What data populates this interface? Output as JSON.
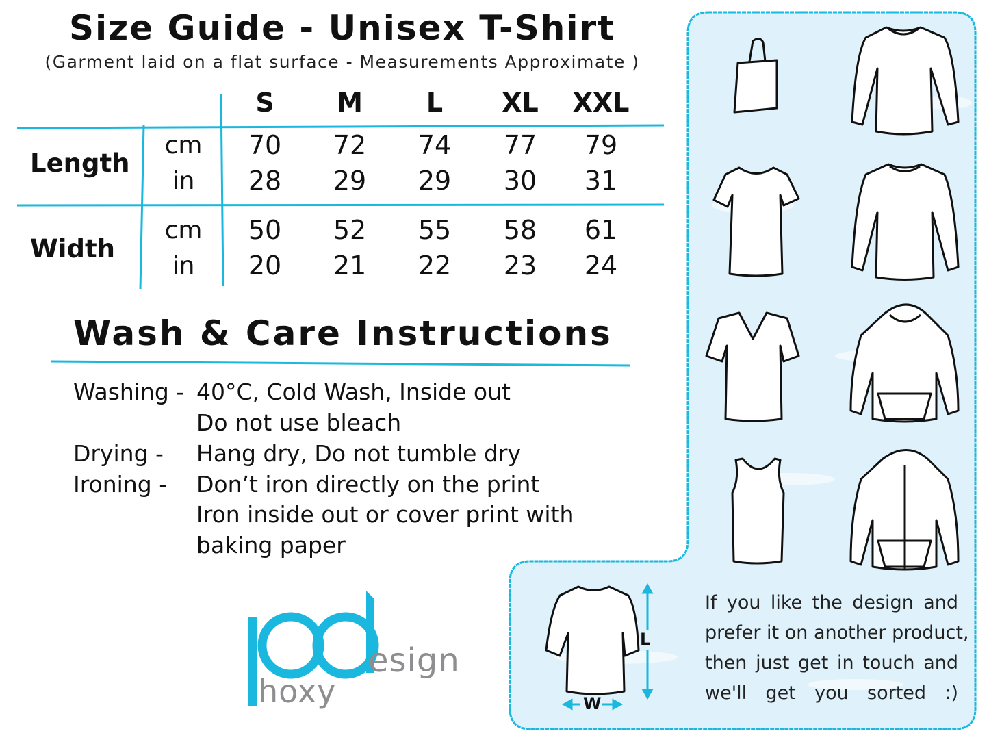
{
  "header": {
    "title": "Size Guide - Unisex T-Shirt",
    "subtitle": "(Garment laid on a flat surface - Measurements Approximate )"
  },
  "size_table": {
    "sizes": [
      "S",
      "M",
      "L",
      "XL",
      "XXL"
    ],
    "rows": [
      {
        "label": "Length",
        "units": [
          {
            "unit": "cm",
            "values": [
              "70",
              "72",
              "74",
              "77",
              "79"
            ]
          },
          {
            "unit": "in",
            "values": [
              "28",
              "29",
              "29",
              "30",
              "31"
            ]
          }
        ]
      },
      {
        "label": "Width",
        "units": [
          {
            "unit": "cm",
            "values": [
              "50",
              "52",
              "55",
              "58",
              "61"
            ]
          },
          {
            "unit": "in",
            "values": [
              "20",
              "21",
              "22",
              "23",
              "24"
            ]
          }
        ]
      }
    ]
  },
  "care": {
    "title": "Wash & Care Instructions",
    "items": [
      {
        "label": "Washing -",
        "lines": [
          "40°C, Cold Wash, Inside out",
          "Do not use bleach"
        ]
      },
      {
        "label": "Drying -",
        "lines": [
          "Hang dry, Do not tumble dry"
        ]
      },
      {
        "label": "Ironing -",
        "lines": [
          "Don’t iron directly on the print",
          "Iron inside out or cover print with",
          "baking paper"
        ]
      }
    ]
  },
  "logo": {
    "mark": "pd",
    "word1": "esign",
    "word2": "hoxy"
  },
  "products_panel": {
    "icons": [
      "tote-bag-icon",
      "long-sleeve-shirt-icon",
      "womens-tshirt-icon",
      "sweatshirt-icon",
      "v-neck-tshirt-icon",
      "hoodie-icon",
      "tank-top-icon",
      "zip-hoodie-icon"
    ],
    "diagram": {
      "length_label": "L",
      "width_label": "W"
    },
    "note_lines": [
      "If you like the design and",
      "prefer it on another product,",
      "then just get in touch and",
      "we'll get you sorted :)"
    ]
  },
  "colors": {
    "accent": "#1ab8de",
    "panel": "#dff2fb",
    "logo_gray": "#8e8e90"
  }
}
